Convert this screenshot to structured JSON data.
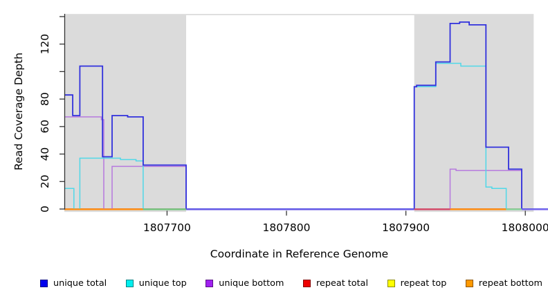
{
  "chart_data": {
    "type": "line",
    "subtype": "step-coverage",
    "title": "",
    "xlabel": "Coordinate in Reference Genome",
    "ylabel": "Read Coverage Depth",
    "xlim": [
      1807614,
      1808019
    ],
    "ylim": [
      0,
      142
    ],
    "frame": {
      "xmin": 1807614,
      "xmax": 1808007
    },
    "grid": false,
    "legend_position": "bottom",
    "background_color": "#ffffff",
    "shaded_region_color": "#dbdbdb",
    "axis_color": "#333333",
    "shaded_regions": [
      {
        "from": 1807614,
        "to": 1807716
      },
      {
        "from": 1807907,
        "to": 1808007
      }
    ],
    "x_ticks": [
      {
        "value": 1807700,
        "label": "1807700"
      },
      {
        "value": 1807800,
        "label": "1807800"
      },
      {
        "value": 1807900,
        "label": "1807900"
      },
      {
        "value": 1808000,
        "label": "1808000"
      }
    ],
    "y_ticks": [
      {
        "value": 0,
        "label": "0"
      },
      {
        "value": 20,
        "label": "20"
      },
      {
        "value": 40,
        "label": "40"
      },
      {
        "value": 60,
        "label": "60"
      },
      {
        "value": 80,
        "label": "80"
      },
      {
        "value": 100,
        "label": ""
      },
      {
        "value": 120,
        "label": "120"
      },
      {
        "value": 140,
        "label": ""
      }
    ],
    "series": [
      {
        "name": "unique total",
        "color": "#3030dd",
        "width": 1.8,
        "segments": [
          [
            1807614,
            1807621,
            83
          ],
          [
            1807621,
            1807627,
            68
          ],
          [
            1807627,
            1807646,
            104
          ],
          [
            1807646,
            1807654,
            38
          ],
          [
            1807654,
            1807667,
            68
          ],
          [
            1807667,
            1807680,
            67
          ],
          [
            1807680,
            1807716,
            32
          ],
          [
            1807716,
            1807907,
            0
          ],
          [
            1807907,
            1807909,
            89
          ],
          [
            1807909,
            1807925,
            90
          ],
          [
            1807925,
            1807937,
            107
          ],
          [
            1807937,
            1807945,
            135
          ],
          [
            1807945,
            1807953,
            136
          ],
          [
            1807953,
            1807967,
            134
          ],
          [
            1807967,
            1807986,
            45
          ],
          [
            1807986,
            1807997,
            29
          ],
          [
            1807997,
            1808019,
            0
          ]
        ]
      },
      {
        "name": "unique top",
        "color": "#4fd8e8",
        "width": 1.5,
        "segments": [
          [
            1807614,
            1807622,
            15
          ],
          [
            1807622,
            1807627,
            0
          ],
          [
            1807627,
            1807661,
            37
          ],
          [
            1807661,
            1807674,
            36
          ],
          [
            1807674,
            1807680,
            35
          ],
          [
            1807680,
            1807907,
            0
          ],
          [
            1807907,
            1807925,
            89
          ],
          [
            1807925,
            1807946,
            106
          ],
          [
            1807946,
            1807967,
            104
          ],
          [
            1807967,
            1807972,
            16
          ],
          [
            1807972,
            1807984,
            15
          ],
          [
            1807984,
            1808019,
            0
          ]
        ]
      },
      {
        "name": "unique bottom",
        "color": "#b678de",
        "width": 1.5,
        "segments": [
          [
            1807614,
            1807645,
            67
          ],
          [
            1807645,
            1807647,
            65
          ],
          [
            1807647,
            1807654,
            0
          ],
          [
            1807654,
            1807716,
            31
          ],
          [
            1807716,
            1807937,
            0
          ],
          [
            1807937,
            1807942,
            29
          ],
          [
            1807942,
            1807997,
            28
          ],
          [
            1807997,
            1808019,
            0
          ]
        ]
      },
      {
        "name": "repeat total",
        "color": "#dd2222",
        "width": 1.5,
        "segments": [
          [
            1807614,
            1807716,
            0
          ],
          [
            1807907,
            1808007,
            0
          ]
        ]
      },
      {
        "name": "repeat top",
        "color": "#f0f000",
        "width": 1.5,
        "segments": [
          [
            1807614,
            1807716,
            0
          ],
          [
            1807907,
            1808007,
            0
          ]
        ]
      },
      {
        "name": "repeat bottom",
        "color": "#ff9015",
        "width": 1.5,
        "segments": [
          [
            1807614,
            1807716,
            0
          ],
          [
            1807907,
            1808007,
            0
          ]
        ]
      }
    ],
    "baseline_segments": [
      {
        "from": 1807614,
        "to": 1807680,
        "color": "#ff9015"
      },
      {
        "from": 1807680,
        "to": 1807716,
        "color": "#74c47c"
      },
      {
        "from": 1807716,
        "to": 1807907,
        "color": "#6a5ce8"
      },
      {
        "from": 1807907,
        "to": 1807937,
        "color": "#d44a6a"
      },
      {
        "from": 1807937,
        "to": 1807984,
        "color": "#ff9015"
      },
      {
        "from": 1807984,
        "to": 1807997,
        "color": "#86d49a"
      },
      {
        "from": 1807997,
        "to": 1808019,
        "color": "#7a68ee"
      }
    ],
    "legend": {
      "items": [
        {
          "label": "unique total",
          "color": "#0000ee"
        },
        {
          "label": "unique top",
          "color": "#00eeee"
        },
        {
          "label": "unique bottom",
          "color": "#a020f0"
        },
        {
          "label": "repeat total",
          "color": "#ee0000"
        },
        {
          "label": "repeat top",
          "color": "#ffff00"
        },
        {
          "label": "repeat bottom",
          "color": "#ff9900"
        }
      ]
    }
  }
}
